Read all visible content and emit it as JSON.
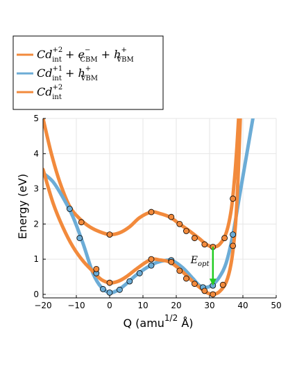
{
  "chart_data": {
    "type": "line",
    "title": "",
    "xlabel_main": "Q (amu",
    "xlabel_sup": "1/2",
    "xlabel_tail": " Å)",
    "ylabel": "Energy  (eV)",
    "xlim": [
      -20,
      50
    ],
    "ylim": [
      -0.1,
      5
    ],
    "x_ticks": [
      -20,
      -10,
      0,
      10,
      20,
      30,
      40,
      50
    ],
    "y_ticks": [
      0,
      1,
      2,
      3,
      4,
      5
    ],
    "grid": true,
    "legend_position": "top-left, outside plot",
    "legend": [
      {
        "series": 0,
        "parts": [
          [
            "Cd",
            "n"
          ],
          [
            "+2",
            "sup"
          ],
          [
            "int",
            "sub"
          ],
          [
            " + e",
            "n"
          ],
          [
            "−",
            "sup"
          ],
          [
            "CBM",
            "sub"
          ],
          [
            " + h",
            "n"
          ],
          [
            "+",
            "sup"
          ],
          [
            "VBM",
            "sub"
          ]
        ]
      },
      {
        "series": 1,
        "parts": [
          [
            "Cd",
            "n"
          ],
          [
            "+1",
            "sup"
          ],
          [
            "int",
            "sub"
          ],
          [
            " + h",
            "n"
          ],
          [
            "+",
            "sup"
          ],
          [
            "VBM",
            "sub"
          ]
        ]
      },
      {
        "series": 2,
        "parts": [
          [
            "Cd",
            "n"
          ],
          [
            "+2",
            "sup"
          ],
          [
            "int",
            "sub"
          ]
        ]
      }
    ],
    "annotation": {
      "text": "E_opt",
      "label": "E",
      "sub": "opt",
      "x": 31,
      "y_from": 1.35,
      "y_to": 0.25,
      "color": "#22cc22"
    },
    "series": [
      {
        "color": "#f28a3c",
        "curve_x": [
          -20,
          -17.5,
          -15,
          -12,
          -9,
          -6,
          -3,
          0,
          3,
          6,
          9,
          12.5,
          15,
          18,
          21,
          24,
          27,
          29,
          31,
          33,
          35,
          36.5,
          37.5,
          38.2,
          38.7
        ],
        "curve_y": [
          5.0,
          4.0,
          3.2,
          2.5,
          2.15,
          1.92,
          1.78,
          1.7,
          1.75,
          1.92,
          2.18,
          2.34,
          2.3,
          2.2,
          2.0,
          1.8,
          1.58,
          1.42,
          1.35,
          1.42,
          1.75,
          2.4,
          3.3,
          4.2,
          5.0
        ],
        "points": [
          [
            -8.5,
            2.05
          ],
          [
            0,
            1.7
          ],
          [
            12.5,
            2.34
          ],
          [
            18.5,
            2.2
          ],
          [
            21,
            2.0
          ],
          [
            23,
            1.8
          ],
          [
            25.5,
            1.6
          ],
          [
            28.5,
            1.42
          ],
          [
            31,
            1.35
          ],
          [
            34.5,
            1.6
          ],
          [
            37,
            2.72
          ]
        ]
      },
      {
        "color": "#6cacd6",
        "curve_x": [
          -20,
          -17,
          -14,
          -11,
          -8,
          -5,
          -2.5,
          0,
          2.5,
          5,
          8,
          11,
          14,
          17,
          19,
          22,
          25,
          27,
          29,
          31,
          33,
          35,
          37,
          39,
          41,
          43
        ],
        "curve_y": [
          3.45,
          3.2,
          2.75,
          2.2,
          1.45,
          0.6,
          0.2,
          0.05,
          0.12,
          0.3,
          0.55,
          0.75,
          0.9,
          0.97,
          0.95,
          0.75,
          0.45,
          0.25,
          0.2,
          0.28,
          0.5,
          0.9,
          1.7,
          2.8,
          3.9,
          5.0
        ],
        "points": [
          [
            -12,
            2.43
          ],
          [
            -9,
            1.6
          ],
          [
            -4,
            0.6
          ],
          [
            -2,
            0.15
          ],
          [
            0,
            0.05
          ],
          [
            3,
            0.13
          ],
          [
            6,
            0.37
          ],
          [
            9,
            0.6
          ],
          [
            12.5,
            0.82
          ],
          [
            18.5,
            0.97
          ],
          [
            28,
            0.2
          ],
          [
            31,
            0.25
          ],
          [
            37,
            1.7
          ]
        ]
      },
      {
        "color": "#f28a3c",
        "curve_x": [
          -20,
          -17,
          -14,
          -11,
          -8,
          -5,
          -2.5,
          0,
          2.5,
          5,
          8,
          11,
          13,
          15,
          18,
          21,
          24,
          27,
          29,
          31,
          33,
          35,
          36.5,
          37.7,
          38.5,
          39.2
        ],
        "curve_y": [
          3.55,
          2.6,
          1.9,
          1.35,
          0.95,
          0.65,
          0.42,
          0.33,
          0.37,
          0.5,
          0.72,
          0.92,
          1.0,
          0.98,
          0.92,
          0.72,
          0.45,
          0.2,
          0.06,
          0.0,
          0.08,
          0.35,
          0.9,
          1.9,
          3.2,
          5.0
        ],
        "points": [
          [
            -4,
            0.72
          ],
          [
            0,
            0.33
          ],
          [
            12.5,
            1.0
          ],
          [
            18.5,
            0.92
          ],
          [
            21,
            0.67
          ],
          [
            23,
            0.45
          ],
          [
            25.5,
            0.3
          ],
          [
            28.5,
            0.1
          ],
          [
            31,
            0.0
          ],
          [
            34,
            0.27
          ],
          [
            37,
            1.38
          ]
        ]
      }
    ]
  }
}
